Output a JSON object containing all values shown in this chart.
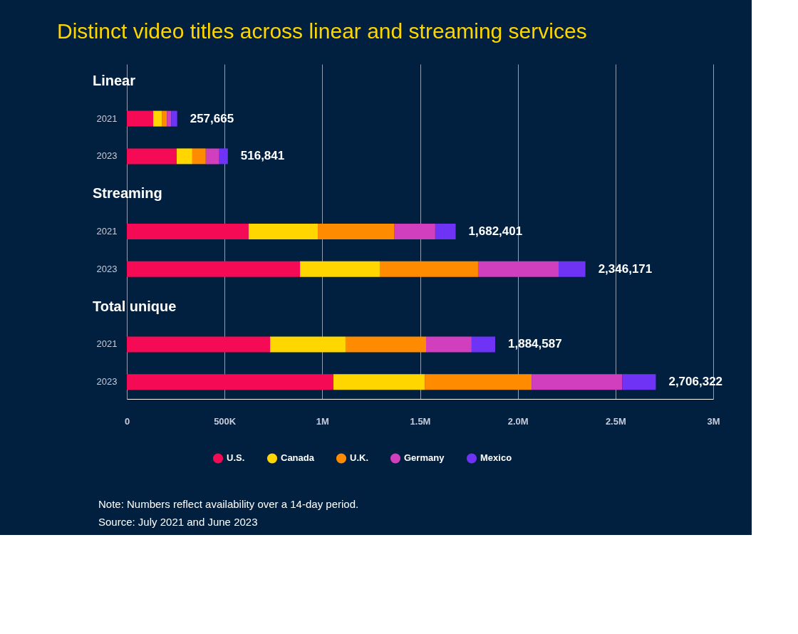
{
  "chart_data": {
    "type": "bar",
    "orientation": "horizontal",
    "stacked": true,
    "title": "Distinct video titles across linear and streaming services",
    "categories": [
      "2021",
      "2023",
      "2021",
      "2023",
      "2021",
      "2023"
    ],
    "xlim": [
      0,
      3000000
    ],
    "xticks": [
      {
        "value": 0,
        "label": "0"
      },
      {
        "value": 500000,
        "label": "500K"
      },
      {
        "value": 1000000,
        "label": "1M"
      },
      {
        "value": 1500000,
        "label": "1.5M"
      },
      {
        "value": 2000000,
        "label": "2.0M"
      },
      {
        "value": 2500000,
        "label": "2.5M"
      },
      {
        "value": 3000000,
        "label": "3M"
      }
    ],
    "grid": "x",
    "legend": "bottom",
    "series": [
      {
        "name": "U.S.",
        "color": "#f50b55",
        "values": [
          135000,
          255000,
          623000,
          886000,
          733000,
          1057000
        ]
      },
      {
        "name": "Canada",
        "color": "#ffd600",
        "values": [
          44000,
          80000,
          354000,
          408000,
          386000,
          467000
        ]
      },
      {
        "name": "U.K.",
        "color": "#ff8c00",
        "values": [
          26000,
          69000,
          390000,
          503000,
          412000,
          547000
        ]
      },
      {
        "name": "Germany",
        "color": "#d13fbf",
        "values": [
          22000,
          69000,
          211000,
          412000,
          233000,
          463000
        ]
      },
      {
        "name": "Mexico",
        "color": "#6e33f5",
        "values": [
          30665,
          43841,
          104401,
          137171,
          120587,
          172322
        ]
      }
    ],
    "totals": [
      "257,665",
      "516,841",
      "1,682,401",
      "2,346,171",
      "1,884,587",
      "2,706,322"
    ],
    "annotations": [
      "Linear",
      "Streaming",
      "Total unique",
      "Note: Numbers reflect availability over a 14-day period.",
      "Source: July 2021 and June 2023"
    ]
  }
}
